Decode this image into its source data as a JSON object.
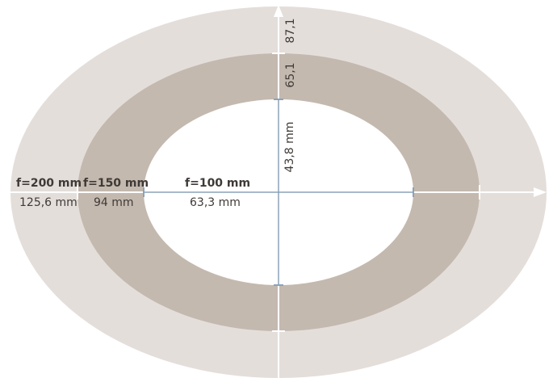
{
  "colors": {
    "outer_ring": "#e4dedb",
    "middle_ring": "#c4b9af",
    "inner": "#ffffff",
    "axis_white": "#ffffff",
    "axis_blue": "#8ba3b8",
    "text": "#3f3a37"
  },
  "rings": [
    {
      "focal_label": "f=200 mm",
      "horizontal_value": "125,6 mm",
      "vertical_value": "87,1"
    },
    {
      "focal_label": "f=150 mm",
      "horizontal_value": "94 mm",
      "vertical_value": "65,1"
    },
    {
      "focal_label": "f=100 mm",
      "horizontal_value": "63,3 mm",
      "vertical_value": "43,8 mm"
    }
  ]
}
